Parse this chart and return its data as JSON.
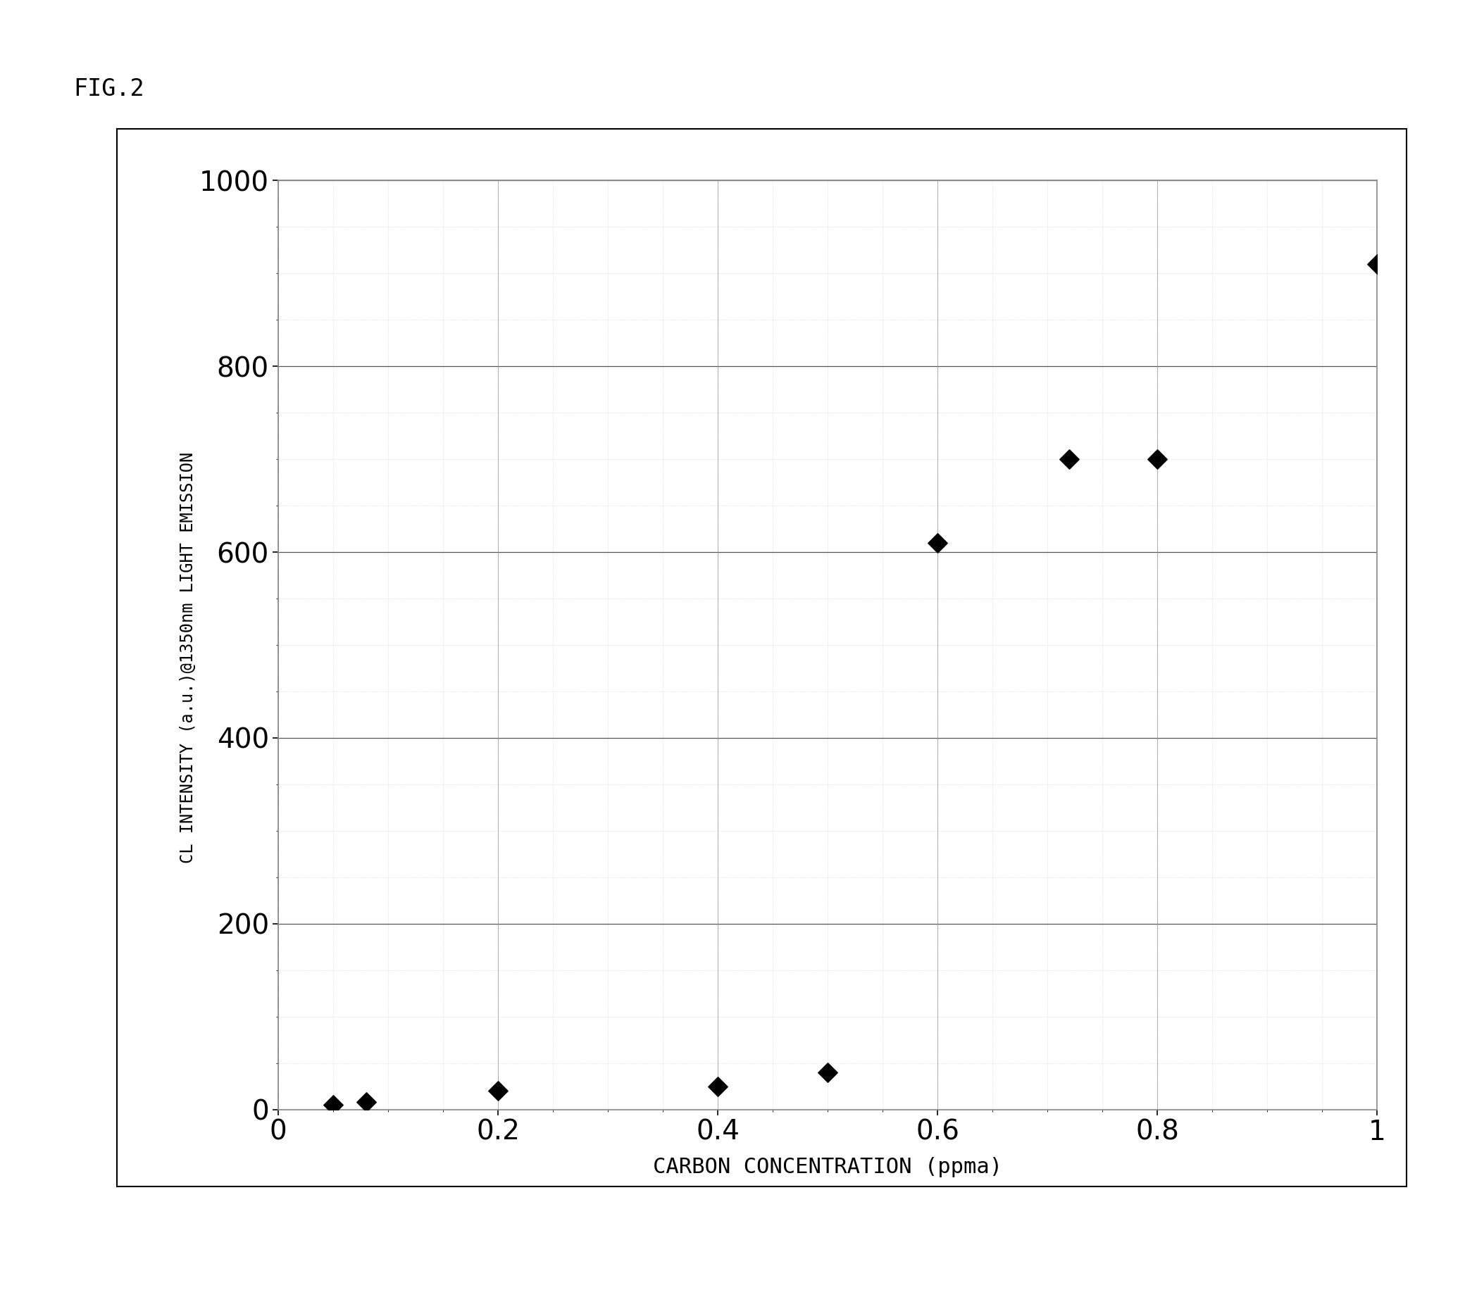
{
  "title": "FIG.2",
  "xlabel": "CARBON CONCENTRATION (ppma)",
  "ylabel": "CL INTENSITY (a.u.)@1350nm LIGHT EMISSION",
  "x_data": [
    0.05,
    0.08,
    0.2,
    0.4,
    0.5,
    0.6,
    0.72,
    0.8,
    1.0
  ],
  "y_data": [
    5,
    8,
    20,
    25,
    40,
    610,
    700,
    700,
    910
  ],
  "xlim": [
    0,
    1.0
  ],
  "ylim": [
    0,
    1000
  ],
  "xticks": [
    0,
    0.2,
    0.4,
    0.6,
    0.8,
    1
  ],
  "yticks": [
    0,
    200,
    400,
    600,
    800,
    1000
  ],
  "marker_color": "#000000",
  "marker_size": 14,
  "background_color": "#ffffff",
  "plot_bg_color": "#ffffff",
  "grid_color": "#999999",
  "axis_label_fontsize": 17,
  "tick_fontsize": 28,
  "title_fontsize": 24,
  "xlabel_fontsize": 22
}
